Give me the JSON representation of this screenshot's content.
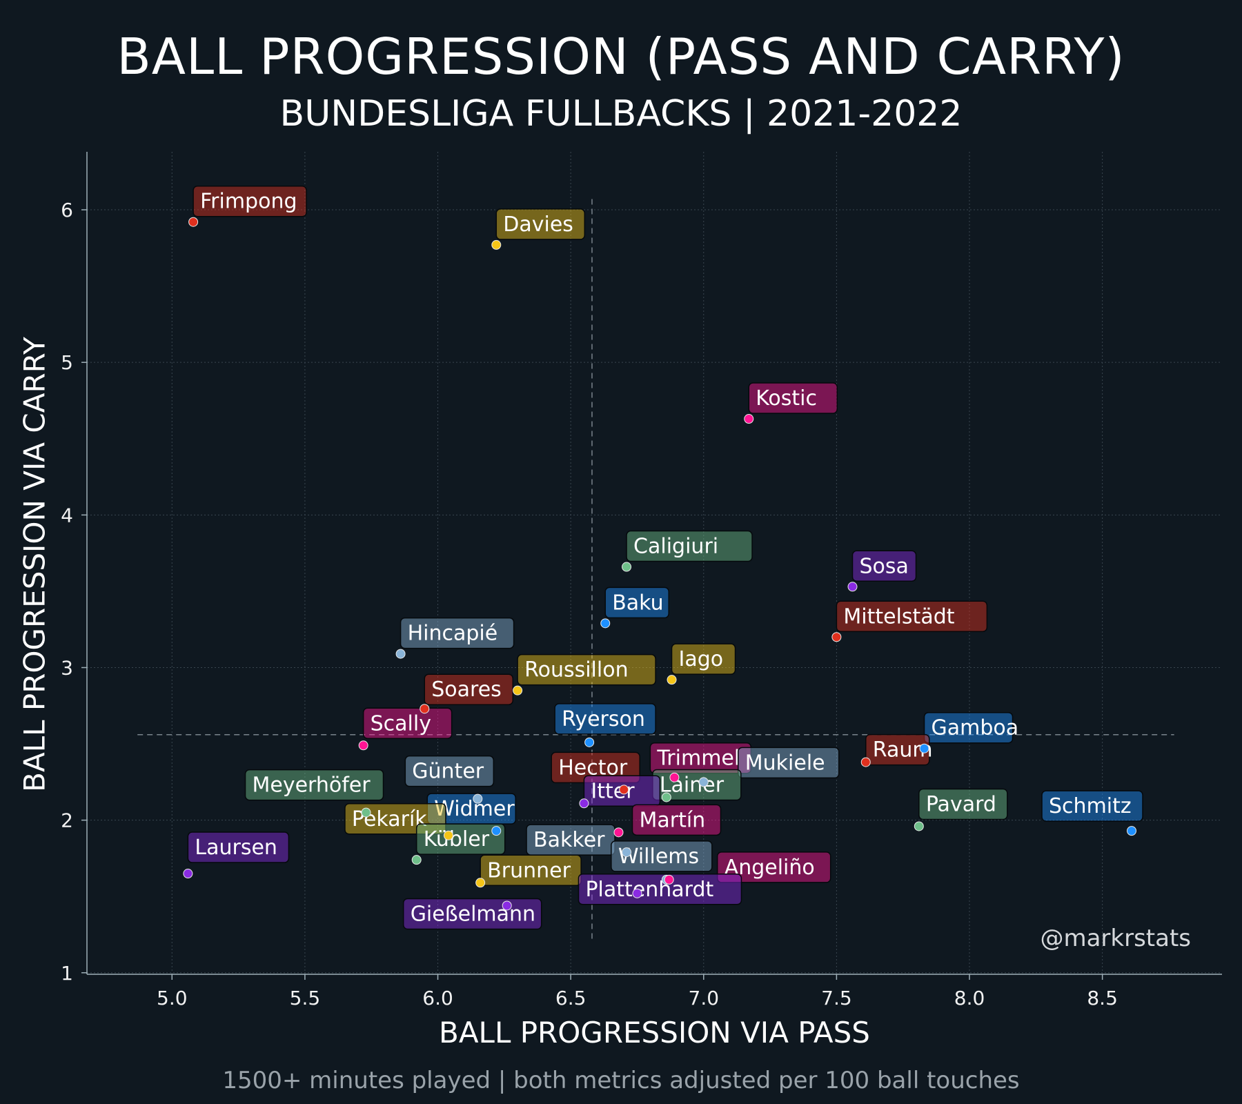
{
  "title": "BALL PROGRESSION (PASS AND CARRY)",
  "subtitle": "BUNDESLIGA FULLBACKS | 2021-2022",
  "footnote": "1500+ minutes played | both metrics adjusted per 100 ball touches",
  "watermark": "@markrstats",
  "colors": {
    "background": "#0f1820",
    "red": "#e0301e",
    "gold": "#f5c518",
    "blue": "#1e90ff",
    "steel": "#8ab4d8",
    "green": "#6fbf8a",
    "purple": "#8a2be2",
    "magenta": "#ff1493"
  },
  "chart_data": {
    "type": "scatter",
    "xlabel": "BALL PROGRESSION VIA PASS",
    "ylabel": "BALL PROGRESSION VIA CARRY",
    "xlim": [
      4.68,
      8.95
    ],
    "ylim": [
      0.99,
      6.38
    ],
    "xticks": [
      "5.0",
      "5.5",
      "6.0",
      "6.5",
      "7.0",
      "7.5",
      "8.0",
      "8.5"
    ],
    "yticks": [
      "1",
      "2",
      "3",
      "4",
      "5",
      "6"
    ],
    "grid": true,
    "reference_lines": {
      "x_median": 6.58,
      "y_median": 2.56
    },
    "points": [
      {
        "name": "Frimpong",
        "x": 5.08,
        "y": 5.92,
        "color": "red"
      },
      {
        "name": "Davies",
        "x": 6.22,
        "y": 5.77,
        "color": "gold"
      },
      {
        "name": "Kostic",
        "x": 7.17,
        "y": 4.63,
        "color": "magenta"
      },
      {
        "name": "Caligiuri",
        "x": 6.71,
        "y": 3.66,
        "color": "green"
      },
      {
        "name": "Sosa",
        "x": 7.56,
        "y": 3.53,
        "color": "purple"
      },
      {
        "name": "Baku",
        "x": 6.63,
        "y": 3.29,
        "color": "blue"
      },
      {
        "name": "Mittelstädt",
        "x": 7.5,
        "y": 3.2,
        "color": "red"
      },
      {
        "name": "Hincapié",
        "x": 5.86,
        "y": 3.09,
        "color": "steel"
      },
      {
        "name": "Iago",
        "x": 6.88,
        "y": 2.92,
        "color": "gold"
      },
      {
        "name": "Roussillon",
        "x": 6.3,
        "y": 2.85,
        "color": "gold"
      },
      {
        "name": "Soares",
        "x": 5.95,
        "y": 2.73,
        "color": "red"
      },
      {
        "name": "Scally",
        "x": 5.72,
        "y": 2.49,
        "color": "magenta"
      },
      {
        "name": "Ryerson",
        "x": 6.57,
        "y": 2.51,
        "color": "blue"
      },
      {
        "name": "Gamboa",
        "x": 7.83,
        "y": 2.47,
        "color": "blue"
      },
      {
        "name": "Trimmel",
        "x": 6.89,
        "y": 2.28,
        "color": "magenta"
      },
      {
        "name": "Mukiele",
        "x": 7.0,
        "y": 2.25,
        "color": "steel"
      },
      {
        "name": "Raum",
        "x": 7.61,
        "y": 2.38,
        "color": "red"
      },
      {
        "name": "Hector",
        "x": 6.7,
        "y": 2.2,
        "color": "red"
      },
      {
        "name": "Lainer",
        "x": 6.86,
        "y": 2.15,
        "color": "green"
      },
      {
        "name": "Günter",
        "x": 6.15,
        "y": 2.14,
        "color": "steel"
      },
      {
        "name": "Meyerhöfer",
        "x": 5.73,
        "y": 2.05,
        "color": "green"
      },
      {
        "name": "Itter",
        "x": 6.55,
        "y": 2.11,
        "color": "purple"
      },
      {
        "name": "Pavard",
        "x": 7.81,
        "y": 1.96,
        "color": "green"
      },
      {
        "name": "Schmitz",
        "x": 8.61,
        "y": 1.93,
        "color": "blue"
      },
      {
        "name": "Widmer",
        "x": 6.22,
        "y": 1.93,
        "color": "blue"
      },
      {
        "name": "Martín",
        "x": 6.68,
        "y": 1.92,
        "color": "magenta"
      },
      {
        "name": "Pekarík",
        "x": 6.04,
        "y": 1.9,
        "color": "gold"
      },
      {
        "name": "Bakker",
        "x": 6.71,
        "y": 1.79,
        "color": "steel"
      },
      {
        "name": "Kübler",
        "x": 5.92,
        "y": 1.74,
        "color": "green"
      },
      {
        "name": "Laursen",
        "x": 5.06,
        "y": 1.65,
        "color": "purple"
      },
      {
        "name": "Willems",
        "x": 6.86,
        "y": 1.61,
        "color": "steel"
      },
      {
        "name": "Angeliño",
        "x": 6.87,
        "y": 1.61,
        "color": "magenta"
      },
      {
        "name": "Brunner",
        "x": 6.16,
        "y": 1.59,
        "color": "gold"
      },
      {
        "name": "Plattenhardt",
        "x": 6.75,
        "y": 1.52,
        "color": "purple"
      },
      {
        "name": "Gießelmann",
        "x": 6.26,
        "y": 1.44,
        "color": "purple"
      }
    ]
  }
}
